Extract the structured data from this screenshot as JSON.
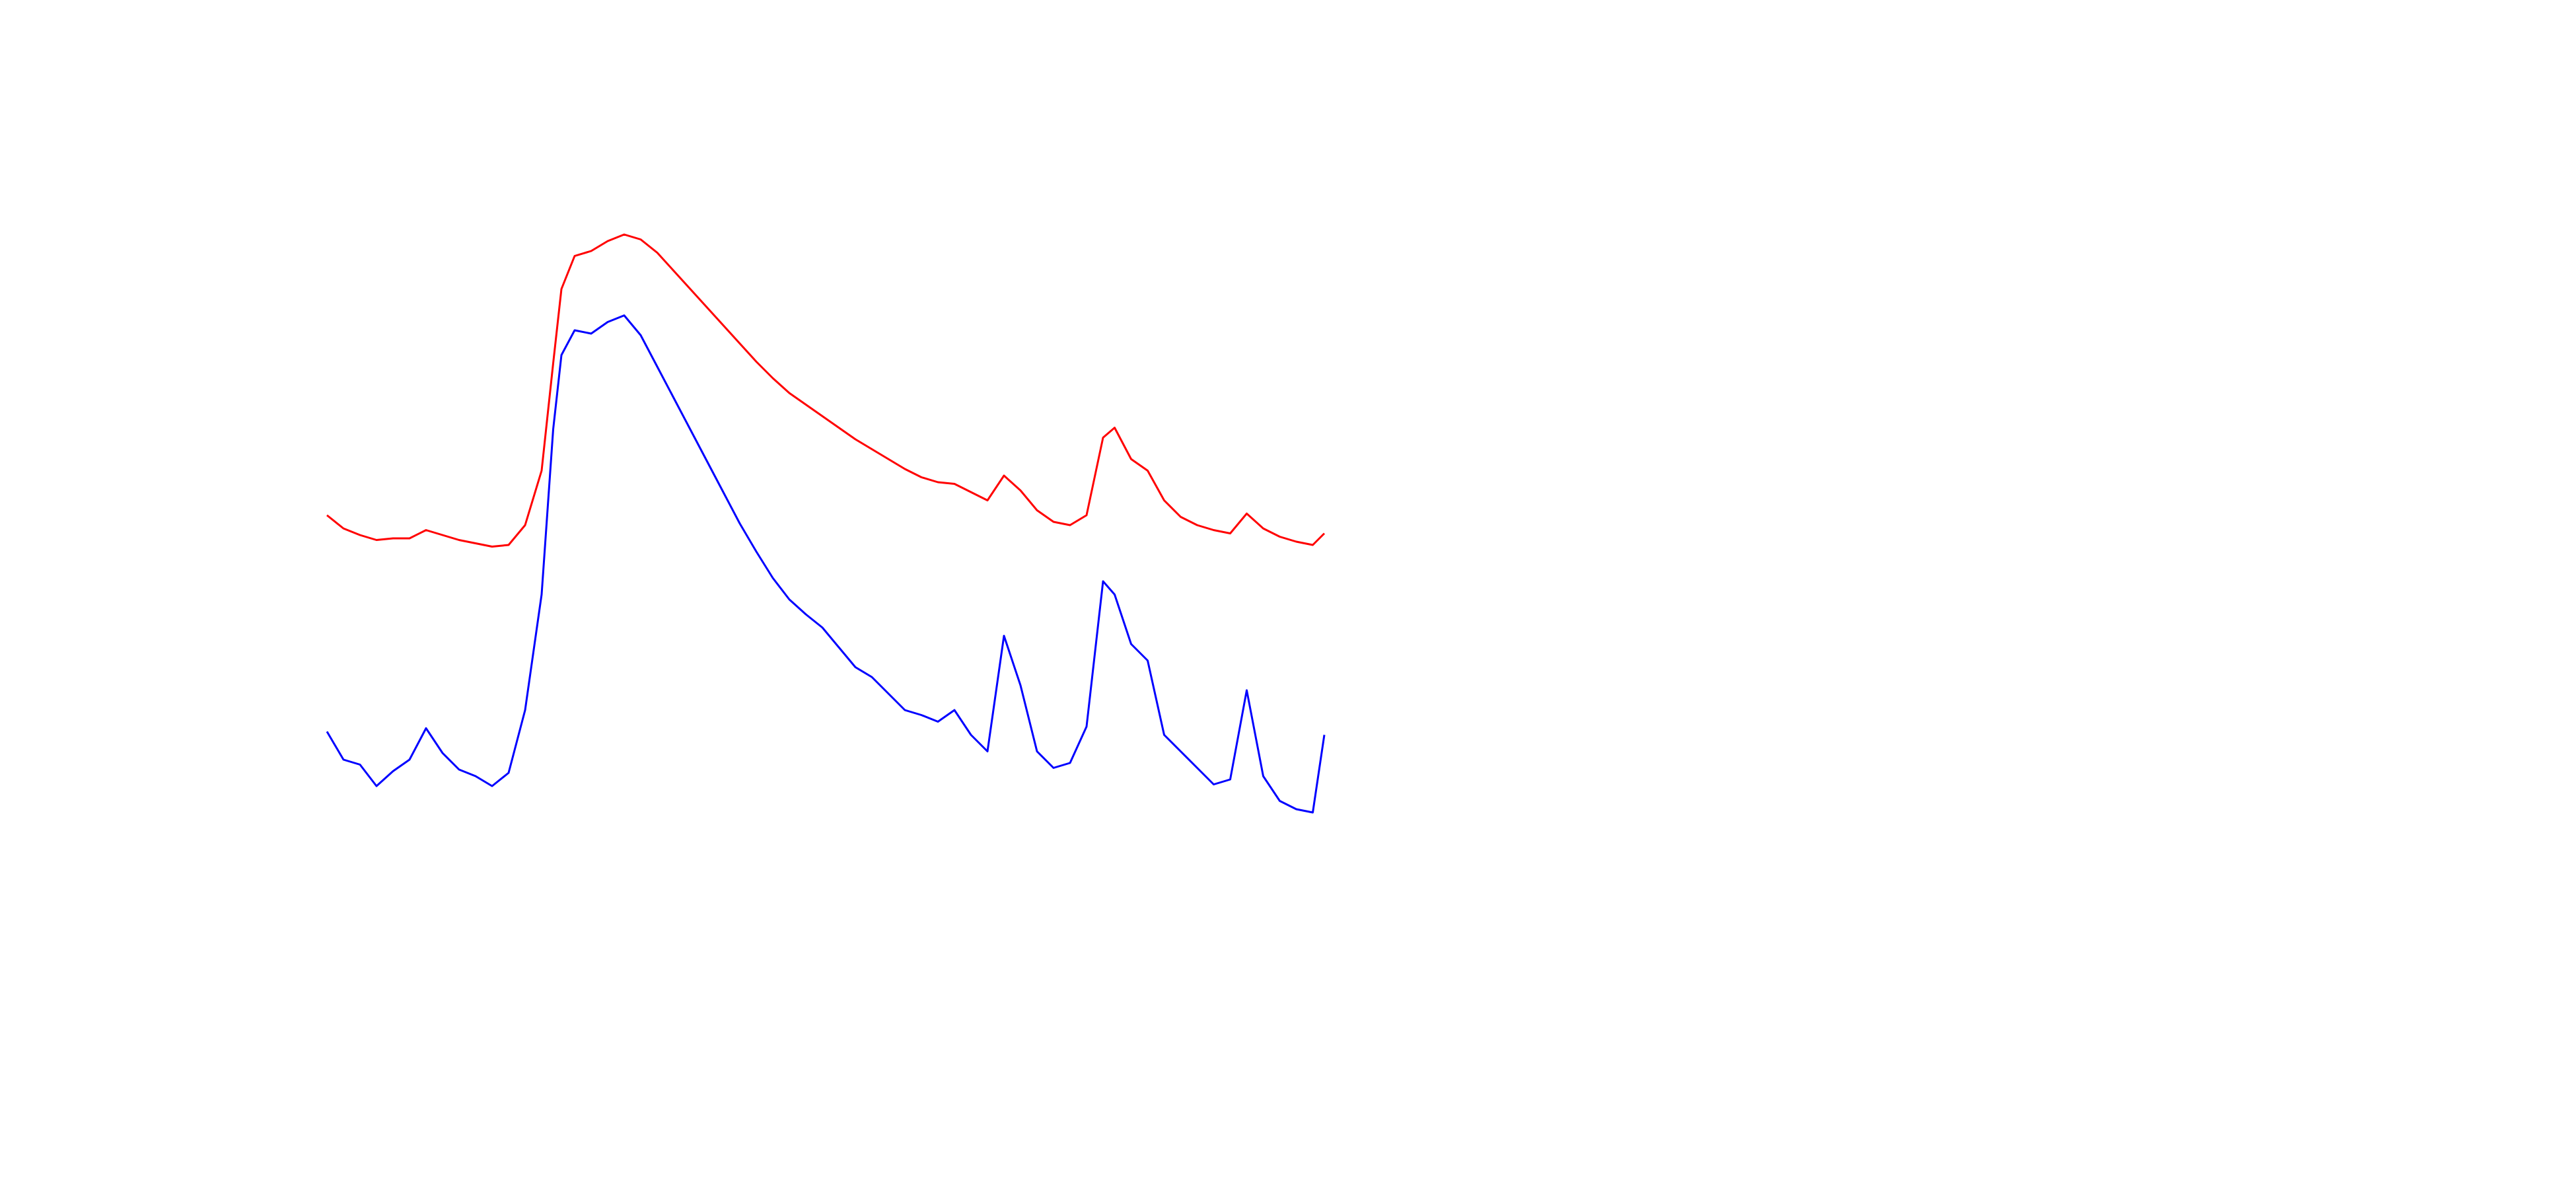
{
  "chart_data": {
    "type": "line",
    "x": [
      0,
      10,
      20,
      30,
      40,
      50,
      60,
      70,
      80,
      90,
      100,
      110,
      120,
      130,
      137,
      142,
      150,
      160,
      170,
      180,
      190,
      200,
      210,
      220,
      230,
      240,
      250,
      260,
      270,
      280,
      290,
      300,
      310,
      320,
      330,
      340,
      350,
      360,
      370,
      380,
      390,
      400,
      410,
      420,
      430,
      440,
      450,
      460,
      470,
      477,
      487,
      497,
      507,
      517,
      527,
      537,
      547,
      557,
      567,
      577,
      587,
      597,
      604
    ],
    "xlim": [
      0,
      604
    ],
    "ylim": [
      0,
      420
    ],
    "series": [
      {
        "color": "#ff0000",
        "values": [
          208,
          200,
          196,
          193,
          194,
          194,
          199,
          196,
          193,
          191,
          189,
          190,
          202,
          235,
          300,
          345,
          365,
          368,
          374,
          378,
          375,
          367,
          356,
          345,
          334,
          323,
          312,
          301,
          291,
          282,
          275,
          268,
          261,
          254,
          248,
          242,
          236,
          231,
          228,
          227,
          222,
          217,
          232,
          223,
          211,
          204,
          202,
          208,
          255,
          261,
          242,
          235,
          217,
          207,
          202,
          199,
          197,
          209,
          200,
          195,
          192,
          190,
          197
        ]
      },
      {
        "color": "#0000ff",
        "values": [
          77,
          60,
          57,
          44,
          53,
          60,
          79,
          64,
          54,
          50,
          44,
          52,
          90,
          160,
          260,
          305,
          320,
          318,
          325,
          329,
          317,
          298,
          279,
          260,
          241,
          222,
          203,
          186,
          170,
          157,
          148,
          140,
          128,
          116,
          110,
          100,
          90,
          87,
          83,
          90,
          75,
          65,
          135,
          105,
          65,
          55,
          58,
          80,
          168,
          160,
          130,
          120,
          75,
          65,
          55,
          45,
          48,
          102,
          50,
          35,
          30,
          28,
          75
        ]
      }
    ]
  }
}
